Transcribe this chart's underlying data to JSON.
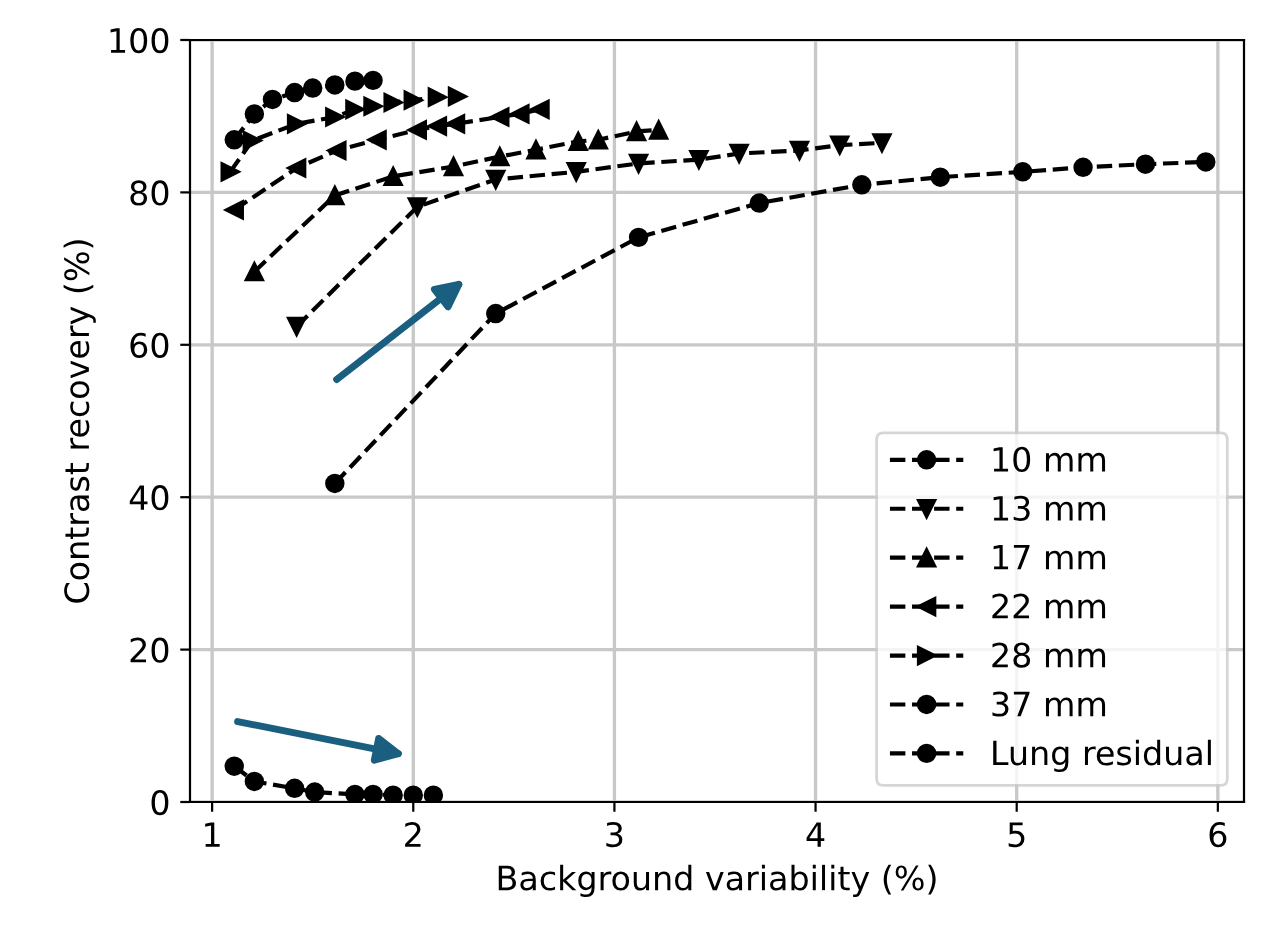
{
  "chart_data": {
    "type": "line",
    "xlabel": "Background variability (%)",
    "ylabel": "Contrast recovery (%)",
    "xlim": [
      0.89,
      6.13
    ],
    "xticks": [
      1,
      2,
      3,
      4,
      5,
      6
    ],
    "ylim": [
      0,
      100
    ],
    "yticks": [
      0,
      20,
      40,
      60,
      80,
      100
    ],
    "grid": true,
    "legend": "bottom right",
    "line_style": "dashed",
    "series": [
      {
        "name": "10 mm",
        "color": "#000000",
        "marker": "circle",
        "x": [
          1.61,
          2.41,
          3.12,
          3.72,
          4.23,
          4.62,
          5.03,
          5.33,
          5.64,
          5.94
        ],
        "values": [
          41.8,
          64.1,
          74.1,
          78.6,
          81.0,
          82.0,
          82.7,
          83.3,
          83.7,
          84.0
        ]
      },
      {
        "name": "13 mm",
        "color": "#000000",
        "marker": "triangle_down",
        "x": [
          1.42,
          2.02,
          2.41,
          2.81,
          3.12,
          3.42,
          3.62,
          3.92,
          4.12,
          4.33
        ],
        "values": [
          62.4,
          78.1,
          81.7,
          82.7,
          83.8,
          84.3,
          85.1,
          85.5,
          86.2,
          86.5
        ]
      },
      {
        "name": "17 mm",
        "color": "#000000",
        "marker": "triangle",
        "x": [
          1.21,
          1.61,
          1.9,
          2.2,
          2.43,
          2.61,
          2.82,
          2.92,
          3.11,
          3.22
        ],
        "values": [
          69.6,
          79.6,
          82.1,
          83.4,
          84.7,
          85.6,
          86.7,
          86.9,
          88.0,
          88.2
        ]
      },
      {
        "name": "22 mm",
        "color": "#000000",
        "marker": "triangle_left",
        "x": [
          1.11,
          1.42,
          1.62,
          1.82,
          2.02,
          2.12,
          2.21,
          2.43,
          2.53,
          2.63
        ],
        "values": [
          77.7,
          83.2,
          85.5,
          86.9,
          88.2,
          88.7,
          89.0,
          89.9,
          90.3,
          90.9
        ]
      },
      {
        "name": "28 mm",
        "color": "#000000",
        "marker": "triangle_right",
        "x": [
          1.09,
          1.2,
          1.42,
          1.61,
          1.71,
          1.8,
          1.9,
          2.0,
          2.12,
          2.22
        ],
        "values": [
          82.7,
          86.8,
          89.0,
          89.9,
          90.9,
          91.3,
          91.8,
          92.1,
          92.5,
          92.6
        ]
      },
      {
        "name": "37 mm",
        "color": "#000000",
        "marker": "circle",
        "x": [
          1.11,
          1.21,
          1.3,
          1.41,
          1.5,
          1.61,
          1.71,
          1.8
        ],
        "values": [
          86.9,
          90.3,
          92.2,
          93.1,
          93.7,
          94.1,
          94.6,
          94.7
        ]
      },
      {
        "name": "Lung residual",
        "color": "#000000",
        "marker": "circle",
        "x": [
          1.11,
          1.21,
          1.41,
          1.51,
          1.71,
          1.8,
          1.9,
          2.0,
          2.1
        ],
        "values": [
          4.7,
          2.7,
          1.8,
          1.3,
          1.0,
          1.0,
          0.9,
          0.9,
          0.9
        ]
      }
    ]
  }
}
